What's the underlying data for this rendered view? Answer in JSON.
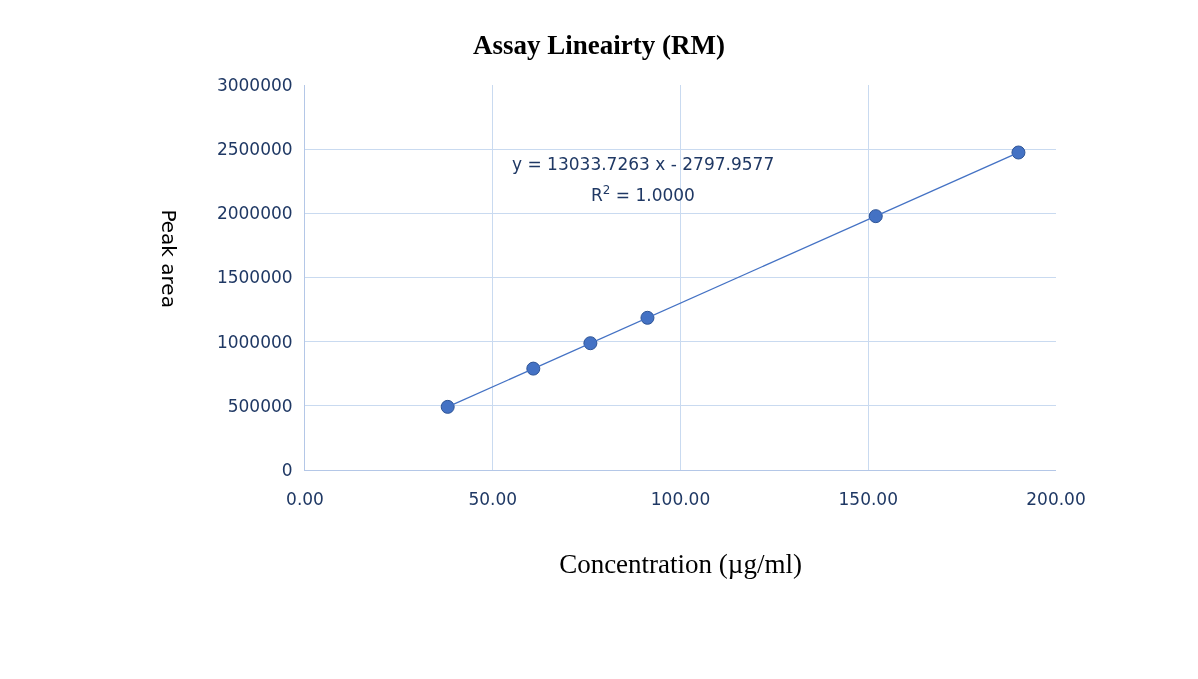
{
  "chart_data": {
    "type": "scatter",
    "title": "Assay Lineairty (RM)",
    "xlabel": "Concentration (µg/ml)",
    "ylabel": "Peak area",
    "x": [
      38,
      60.8,
      76,
      91.2,
      152,
      190
    ],
    "series": [
      {
        "color": "#4472c4",
        "values": [
          492000,
          790000,
          988000,
          1186000,
          1978000,
          2474000
        ],
        "marker": "circle"
      },
      {
        "type": "line",
        "color": "#4472c4",
        "x": [
          38,
          190
        ],
        "values": [
          492000,
          2474000
        ],
        "marker": "none",
        "line_style": "solid"
      }
    ],
    "annotations": [
      "y = 13033.7263 x - 2797.9577",
      "R$^{2}$ = 1.0000"
    ],
    "xlim": [
      0,
      200
    ],
    "xticks": [
      {
        "value": 0,
        "label": "0.00"
      },
      {
        "value": 50,
        "label": "50.00"
      },
      {
        "value": 100,
        "label": "100.00"
      },
      {
        "value": 150,
        "label": "150.00"
      },
      {
        "value": 200,
        "label": "200.00"
      }
    ],
    "ylim": [
      0,
      3000000
    ],
    "yticks": [
      0,
      500000,
      1000000,
      1500000,
      2000000,
      2500000,
      3000000
    ],
    "grid": true
  }
}
